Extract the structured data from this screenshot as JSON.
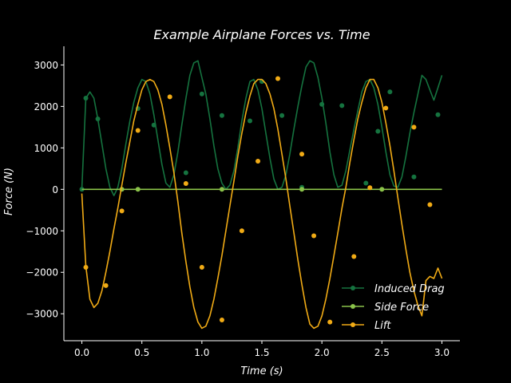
{
  "chart_data": {
    "type": "line",
    "title": "Example Airplane Forces vs. Time",
    "xlabel": "Time (s)",
    "ylabel": "Force (N)",
    "xlim": [
      -0.15,
      3.15
    ],
    "ylim": [
      -3650,
      3450
    ],
    "x_ticks": [
      {
        "value": 0.0,
        "label": "0.0"
      },
      {
        "value": 0.5,
        "label": "0.5"
      },
      {
        "value": 1.0,
        "label": "1.0"
      },
      {
        "value": 1.5,
        "label": "1.5"
      },
      {
        "value": 2.0,
        "label": "2.0"
      },
      {
        "value": 2.5,
        "label": "2.5"
      },
      {
        "value": 3.0,
        "label": "3.0"
      }
    ],
    "y_ticks": [
      {
        "value": -3000,
        "label": "−3000"
      },
      {
        "value": -2000,
        "label": "−2000"
      },
      {
        "value": -1000,
        "label": "−1000"
      },
      {
        "value": 0,
        "label": "0"
      },
      {
        "value": 1000,
        "label": "1000"
      },
      {
        "value": 2000,
        "label": "2000"
      },
      {
        "value": 3000,
        "label": "3000"
      }
    ],
    "grid": false,
    "legend_position": "lower-right",
    "background": "#000000",
    "axis_color": "#ffffff",
    "series": [
      {
        "name": "Induced Drag",
        "color": "#15733f",
        "x": [
          0.0,
          0.033,
          0.067,
          0.1,
          0.133,
          0.167,
          0.2,
          0.233,
          0.267,
          0.3,
          0.333,
          0.367,
          0.4,
          0.433,
          0.467,
          0.5,
          0.533,
          0.567,
          0.6,
          0.633,
          0.667,
          0.7,
          0.733,
          0.767,
          0.8,
          0.833,
          0.867,
          0.9,
          0.933,
          0.967,
          1.0,
          1.033,
          1.067,
          1.1,
          1.133,
          1.167,
          1.2,
          1.233,
          1.267,
          1.3,
          1.333,
          1.367,
          1.4,
          1.433,
          1.467,
          1.5,
          1.533,
          1.567,
          1.6,
          1.633,
          1.667,
          1.7,
          1.733,
          1.767,
          1.8,
          1.833,
          1.867,
          1.9,
          1.933,
          1.967,
          2.0,
          2.033,
          2.067,
          2.1,
          2.133,
          2.167,
          2.2,
          2.233,
          2.267,
          2.3,
          2.333,
          2.367,
          2.4,
          2.433,
          2.467,
          2.5,
          2.533,
          2.567,
          2.6,
          2.633,
          2.667,
          2.7,
          2.733,
          2.767,
          2.8,
          2.833,
          2.867,
          2.9,
          2.933,
          2.967,
          3.0
        ],
        "values": [
          0,
          2200,
          2350,
          2200,
          1700,
          1100,
          500,
          50,
          -150,
          50,
          500,
          1100,
          1650,
          2100,
          2450,
          2650,
          2600,
          2300,
          1800,
          1200,
          600,
          150,
          50,
          350,
          900,
          1550,
          2200,
          2750,
          3050,
          3100,
          2700,
          2300,
          1700,
          1050,
          500,
          150,
          0,
          100,
          450,
          1000,
          1650,
          2200,
          2600,
          2650,
          2400,
          1950,
          1350,
          750,
          250,
          0,
          50,
          350,
          850,
          1450,
          2000,
          2500,
          2950,
          3100,
          3050,
          2700,
          2200,
          1600,
          900,
          350,
          50,
          100,
          450,
          950,
          1450,
          1900,
          2350,
          2600,
          2650,
          2450,
          2050,
          1500,
          900,
          350,
          80,
          50,
          300,
          800,
          1350,
          1850,
          2300,
          2750,
          2650,
          2400,
          2150,
          2450,
          2750
        ],
        "markers_x": [
          0.0,
          0.033,
          0.133,
          0.467,
          0.6,
          0.867,
          1.0,
          1.167,
          1.4,
          1.5,
          1.667,
          1.833,
          2.0,
          2.167,
          2.367,
          2.467,
          2.567,
          2.767,
          2.967
        ],
        "markers_y": [
          0,
          2200,
          1700,
          1950,
          1550,
          400,
          2300,
          1780,
          1650,
          2600,
          1780,
          50,
          2050,
          2020,
          150,
          1400,
          2350,
          300,
          1800
        ]
      },
      {
        "name": "Side Force",
        "color": "#8bc34a",
        "x": [
          0.0,
          3.0
        ],
        "values": [
          0,
          0
        ],
        "markers_x": [
          0.333,
          0.467,
          1.167,
          1.833,
          2.5
        ],
        "markers_y": [
          0,
          0,
          0,
          0,
          0
        ]
      },
      {
        "name": "Lift",
        "color": "#f1ab15",
        "x": [
          0.0,
          0.033,
          0.067,
          0.1,
          0.133,
          0.167,
          0.2,
          0.233,
          0.267,
          0.3,
          0.333,
          0.367,
          0.4,
          0.433,
          0.467,
          0.5,
          0.533,
          0.567,
          0.6,
          0.633,
          0.667,
          0.7,
          0.733,
          0.767,
          0.8,
          0.833,
          0.867,
          0.9,
          0.933,
          0.967,
          1.0,
          1.033,
          1.067,
          1.1,
          1.133,
          1.167,
          1.2,
          1.233,
          1.267,
          1.3,
          1.333,
          1.367,
          1.4,
          1.433,
          1.467,
          1.5,
          1.533,
          1.567,
          1.6,
          1.633,
          1.667,
          1.7,
          1.733,
          1.767,
          1.8,
          1.833,
          1.867,
          1.9,
          1.933,
          1.967,
          2.0,
          2.033,
          2.067,
          2.1,
          2.133,
          2.167,
          2.2,
          2.233,
          2.267,
          2.3,
          2.333,
          2.367,
          2.4,
          2.433,
          2.467,
          2.5,
          2.533,
          2.567,
          2.6,
          2.633,
          2.667,
          2.7,
          2.733,
          2.767,
          2.8,
          2.833,
          2.867,
          2.9,
          2.933,
          2.967,
          3.0
        ],
        "values": [
          -100,
          -1850,
          -2650,
          -2850,
          -2750,
          -2450,
          -2000,
          -1500,
          -950,
          -450,
          100,
          650,
          1150,
          1650,
          2050,
          2400,
          2600,
          2650,
          2600,
          2400,
          2050,
          1550,
          1000,
          400,
          -300,
          -1050,
          -1750,
          -2350,
          -2850,
          -3200,
          -3350,
          -3300,
          -3050,
          -2650,
          -2150,
          -1600,
          -1000,
          -400,
          200,
          800,
          1350,
          1850,
          2250,
          2550,
          2650,
          2650,
          2550,
          2300,
          1950,
          1450,
          850,
          250,
          -400,
          -1050,
          -1700,
          -2300,
          -2850,
          -3250,
          -3350,
          -3300,
          -3050,
          -2650,
          -2150,
          -1600,
          -1050,
          -450,
          50,
          650,
          1200,
          1700,
          2100,
          2450,
          2650,
          2650,
          2450,
          2100,
          1600,
          1050,
          450,
          -200,
          -850,
          -1450,
          -2000,
          -2450,
          -2800,
          -3050,
          -2200,
          -2100,
          -2150,
          -1900,
          -2150
        ],
        "markers_x": [
          0.033,
          0.2,
          0.333,
          0.467,
          0.733,
          0.867,
          1.0,
          1.167,
          1.333,
          1.467,
          1.633,
          1.833,
          1.933,
          2.067,
          2.267,
          2.4,
          2.533,
          2.767,
          2.9
        ],
        "markers_y": [
          -1880,
          -2320,
          -520,
          1420,
          2230,
          140,
          -1880,
          -3150,
          -1000,
          680,
          2670,
          850,
          -1120,
          -3200,
          -1620,
          40,
          1960,
          1500,
          -370
        ]
      }
    ]
  }
}
